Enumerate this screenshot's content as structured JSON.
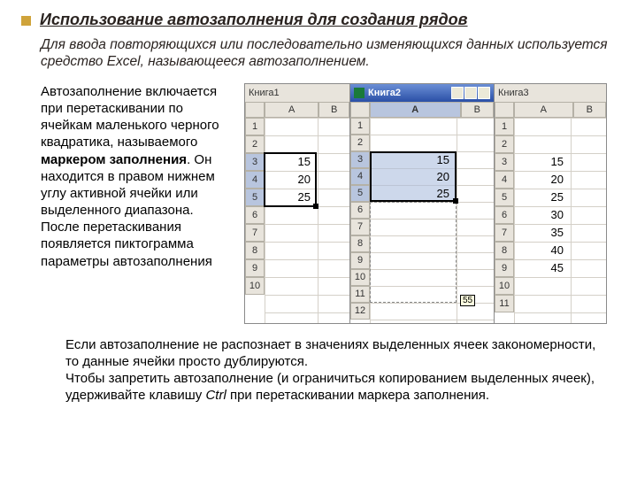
{
  "title": "Использование автозаполнения для создания рядов",
  "subtitle": "Для ввода повторяющихся или последовательно изменяющихся данных используется средство Excel, называющееся автозаполнением.",
  "desc_pre": "Автозаполнение включается при перетаскивании по ячейкам маленького черного квадратика, называемого ",
  "desc_bold": "маркером заполнения",
  "desc_post": ". Он находится в правом нижнем углу активной ячейки или выделенного диапазона. После перетаскивания появляется пиктограмма параметры автозаполнения",
  "bottom1": "Если автозаполнение не распознает в значениях выделенных ячеек закономерности, то данные ячейки просто дублируются.",
  "bottom2": "Чтобы запретить автозаполнение (и ограничиться копированием выделенных ячеек), удерживайте клавишу ",
  "bottom_italic": "Ctrl",
  "bottom3": " при перетаскивании маркера заполнения.",
  "sheets": {
    "s1": {
      "title": "Книга1",
      "cols": [
        "A",
        "B"
      ],
      "rows": 10,
      "values": [
        [
          3,
          "15"
        ],
        [
          4,
          "20"
        ],
        [
          5,
          "25"
        ]
      ],
      "sel": {
        "r1": 3,
        "r2": 5
      },
      "handle_row": 5
    },
    "s2": {
      "title": "Книга2",
      "cols": [
        "A",
        "B"
      ],
      "rows": 12,
      "values": [
        [
          3,
          "15"
        ],
        [
          4,
          "20"
        ],
        [
          5,
          "25"
        ]
      ],
      "sel": {
        "r1": 3,
        "r2": 5
      },
      "drag_to": 11,
      "tip": "55"
    },
    "s3": {
      "title": "Книга3",
      "cols": [
        "A",
        "B"
      ],
      "rows": 11,
      "values": [
        [
          3,
          "15"
        ],
        [
          4,
          "20"
        ],
        [
          5,
          "25"
        ],
        [
          6,
          "30"
        ],
        [
          7,
          "35"
        ],
        [
          8,
          "40"
        ],
        [
          9,
          "45"
        ]
      ]
    }
  },
  "colors": {
    "bullet": "#cfa33a"
  }
}
